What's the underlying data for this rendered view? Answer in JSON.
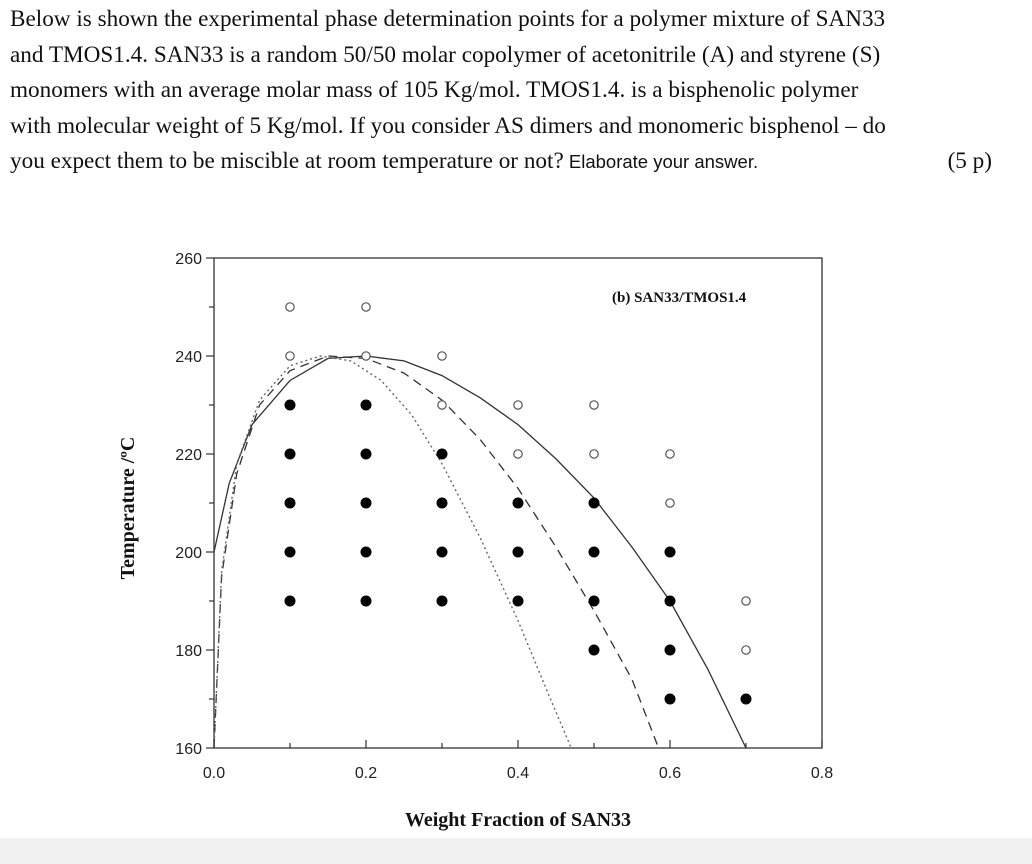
{
  "question": {
    "lines": [
      "Below is shown the experimental phase determination points for a polymer mixture of SAN33",
      "and TMOS1.4. SAN33 is a random 50/50 molar copolymer of acetonitrile (A) and styrene (S)",
      "monomers with an average molar mass of 105 Kg/mol.  TMOS1.4. is a bisphenolic polymer",
      "with molecular weight of 5 Kg/mol. If you consider AS dimers and monomeric bisphenol – do"
    ],
    "last_line_start": "you expect them to be miscible at room temperature or not?",
    "last_line_tail": " Elaborate your answer.",
    "points": "(5 p)"
  },
  "chart_data": {
    "type": "scatter",
    "panel_label": "(b) SAN33/TMOS1.4",
    "xlabel": "Weight Fraction of SAN33",
    "ylabel": "Temperature /ºC",
    "xlim": [
      0.0,
      0.8
    ],
    "ylim": [
      160,
      260
    ],
    "x_ticks": [
      "0.0",
      "0.2",
      "0.4",
      "0.6",
      "0.8"
    ],
    "y_ticks": [
      "160",
      "180",
      "200",
      "220",
      "240",
      "260"
    ],
    "grid": false,
    "series": [
      {
        "marker": "open-circle",
        "points": [
          [
            0.1,
            250
          ],
          [
            0.2,
            250
          ],
          [
            0.1,
            240
          ],
          [
            0.2,
            240
          ],
          [
            0.3,
            240
          ],
          [
            0.3,
            230
          ],
          [
            0.4,
            230
          ],
          [
            0.5,
            230
          ],
          [
            0.4,
            220
          ],
          [
            0.5,
            220
          ],
          [
            0.6,
            220
          ],
          [
            0.6,
            210
          ],
          [
            0.7,
            190
          ],
          [
            0.7,
            180
          ]
        ]
      },
      {
        "marker": "filled-circle",
        "points": [
          [
            0.1,
            230
          ],
          [
            0.2,
            230
          ],
          [
            0.1,
            220
          ],
          [
            0.2,
            220
          ],
          [
            0.3,
            220
          ],
          [
            0.1,
            210
          ],
          [
            0.2,
            210
          ],
          [
            0.3,
            210
          ],
          [
            0.4,
            210
          ],
          [
            0.5,
            210
          ],
          [
            0.1,
            200
          ],
          [
            0.2,
            200
          ],
          [
            0.3,
            200
          ],
          [
            0.4,
            200
          ],
          [
            0.5,
            200
          ],
          [
            0.6,
            200
          ],
          [
            0.1,
            190
          ],
          [
            0.2,
            190
          ],
          [
            0.3,
            190
          ],
          [
            0.4,
            190
          ],
          [
            0.5,
            190
          ],
          [
            0.6,
            190
          ],
          [
            0.5,
            180
          ],
          [
            0.6,
            180
          ],
          [
            0.6,
            170
          ],
          [
            0.7,
            170
          ]
        ]
      }
    ],
    "curves": [
      {
        "style": "solid",
        "points": [
          [
            0.0,
            200
          ],
          [
            0.02,
            214
          ],
          [
            0.05,
            226
          ],
          [
            0.1,
            235
          ],
          [
            0.15,
            239.5
          ],
          [
            0.2,
            240
          ],
          [
            0.25,
            239
          ],
          [
            0.3,
            236
          ],
          [
            0.35,
            231.5
          ],
          [
            0.4,
            226
          ],
          [
            0.45,
            219
          ],
          [
            0.5,
            211
          ],
          [
            0.55,
            201
          ],
          [
            0.6,
            190
          ],
          [
            0.65,
            176
          ],
          [
            0.7,
            160
          ]
        ]
      },
      {
        "style": "dashed",
        "points": [
          [
            0.0,
            160
          ],
          [
            0.01,
            195
          ],
          [
            0.03,
            216
          ],
          [
            0.06,
            230
          ],
          [
            0.1,
            237
          ],
          [
            0.15,
            240
          ],
          [
            0.2,
            239.5
          ],
          [
            0.25,
            236.5
          ],
          [
            0.3,
            231
          ],
          [
            0.35,
            223
          ],
          [
            0.4,
            213
          ],
          [
            0.45,
            201
          ],
          [
            0.5,
            188
          ],
          [
            0.55,
            174
          ],
          [
            0.585,
            160
          ]
        ]
      },
      {
        "style": "dotted",
        "points": [
          [
            0.0,
            160
          ],
          [
            0.01,
            196
          ],
          [
            0.03,
            218
          ],
          [
            0.06,
            231
          ],
          [
            0.1,
            238
          ],
          [
            0.14,
            240
          ],
          [
            0.18,
            239
          ],
          [
            0.22,
            235
          ],
          [
            0.26,
            228
          ],
          [
            0.3,
            218
          ],
          [
            0.35,
            203
          ],
          [
            0.4,
            186
          ],
          [
            0.44,
            171
          ],
          [
            0.47,
            160
          ]
        ]
      }
    ]
  }
}
